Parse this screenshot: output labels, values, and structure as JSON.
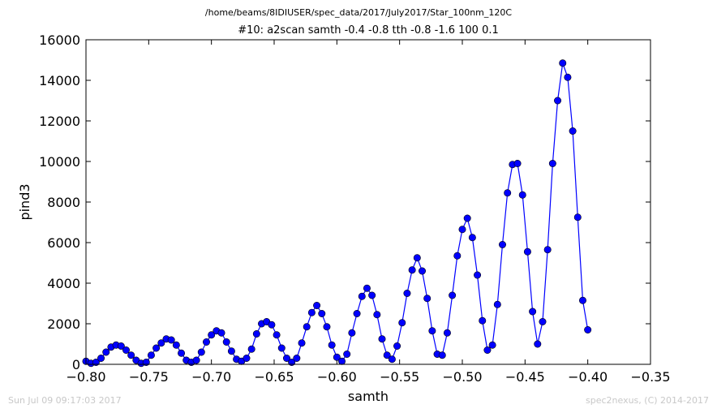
{
  "header": {
    "path": "/home/beams/8IDIUSER/spec_data/2017/July2017/Star_100nm_120C",
    "scan": "#10: a2scan  samth -0.4 -0.8  tth -0.8 -1.6  100 0.1"
  },
  "footer": {
    "timestamp": "Sun Jul 09 09:17:03 2017",
    "credit": "spec2nexus, (C) 2014-2017"
  },
  "chart_data": {
    "type": "line",
    "title": "#10: a2scan  samth -0.4 -0.8  tth -0.8 -1.6  100 0.1",
    "xlabel": "samth",
    "ylabel": "pind3",
    "xlim": [
      -0.8,
      -0.35
    ],
    "ylim": [
      0,
      16000
    ],
    "xticks": [
      -0.8,
      -0.75,
      -0.7,
      -0.65,
      -0.6,
      -0.55,
      -0.5,
      -0.45,
      -0.4,
      -0.35
    ],
    "xtick_labels": [
      "−0.80",
      "−0.75",
      "−0.70",
      "−0.65",
      "−0.60",
      "−0.55",
      "−0.50",
      "−0.45",
      "−0.40",
      "−0.35"
    ],
    "yticks": [
      0,
      2000,
      4000,
      6000,
      8000,
      10000,
      12000,
      14000,
      16000
    ],
    "ytick_labels": [
      "0",
      "2000",
      "4000",
      "6000",
      "8000",
      "10000",
      "12000",
      "14000",
      "16000"
    ],
    "grid": false,
    "marker": "circle",
    "color": "#0000ff",
    "x": [
      -0.8,
      -0.796,
      -0.792,
      -0.788,
      -0.784,
      -0.78,
      -0.776,
      -0.772,
      -0.768,
      -0.764,
      -0.76,
      -0.756,
      -0.752,
      -0.748,
      -0.744,
      -0.74,
      -0.736,
      -0.732,
      -0.728,
      -0.724,
      -0.72,
      -0.716,
      -0.712,
      -0.708,
      -0.704,
      -0.7,
      -0.696,
      -0.692,
      -0.688,
      -0.684,
      -0.68,
      -0.676,
      -0.672,
      -0.668,
      -0.664,
      -0.66,
      -0.656,
      -0.652,
      -0.648,
      -0.644,
      -0.64,
      -0.636,
      -0.632,
      -0.628,
      -0.624,
      -0.62,
      -0.616,
      -0.612,
      -0.608,
      -0.604,
      -0.6,
      -0.596,
      -0.592,
      -0.588,
      -0.584,
      -0.58,
      -0.576,
      -0.572,
      -0.568,
      -0.564,
      -0.56,
      -0.556,
      -0.552,
      -0.548,
      -0.544,
      -0.54,
      -0.536,
      -0.532,
      -0.528,
      -0.524,
      -0.52,
      -0.516,
      -0.512,
      -0.508,
      -0.504,
      -0.5,
      -0.496,
      -0.492,
      -0.488,
      -0.484,
      -0.48,
      -0.476,
      -0.472,
      -0.468,
      -0.464,
      -0.46,
      -0.456,
      -0.452,
      -0.448,
      -0.444,
      -0.44,
      -0.436,
      -0.432,
      -0.428,
      -0.424,
      -0.42,
      -0.416,
      -0.412,
      -0.408,
      -0.404,
      -0.4
    ],
    "y": [
      150,
      50,
      100,
      300,
      600,
      850,
      950,
      900,
      700,
      450,
      200,
      50,
      100,
      450,
      800,
      1050,
      1250,
      1200,
      950,
      550,
      200,
      100,
      200,
      600,
      1100,
      1450,
      1650,
      1550,
      1100,
      650,
      250,
      150,
      300,
      750,
      1500,
      2000,
      2100,
      1950,
      1450,
      800,
      300,
      100,
      300,
      1050,
      1850,
      2550,
      2900,
      2500,
      1850,
      950,
      350,
      150,
      500,
      1550,
      2500,
      3350,
      3750,
      3400,
      2450,
      1250,
      450,
      250,
      900,
      2050,
      3500,
      4650,
      5250,
      4600,
      3250,
      1650,
      500,
      450,
      1550,
      3400,
      5350,
      6650,
      7200,
      6250,
      4400,
      2150,
      700,
      950,
      2950,
      5900,
      8450,
      9850,
      9900,
      8350,
      5550,
      2600,
      1000,
      2100,
      5650,
      9900,
      13000,
      14850,
      14150,
      11500,
      7250,
      3150,
      1700
    ]
  }
}
